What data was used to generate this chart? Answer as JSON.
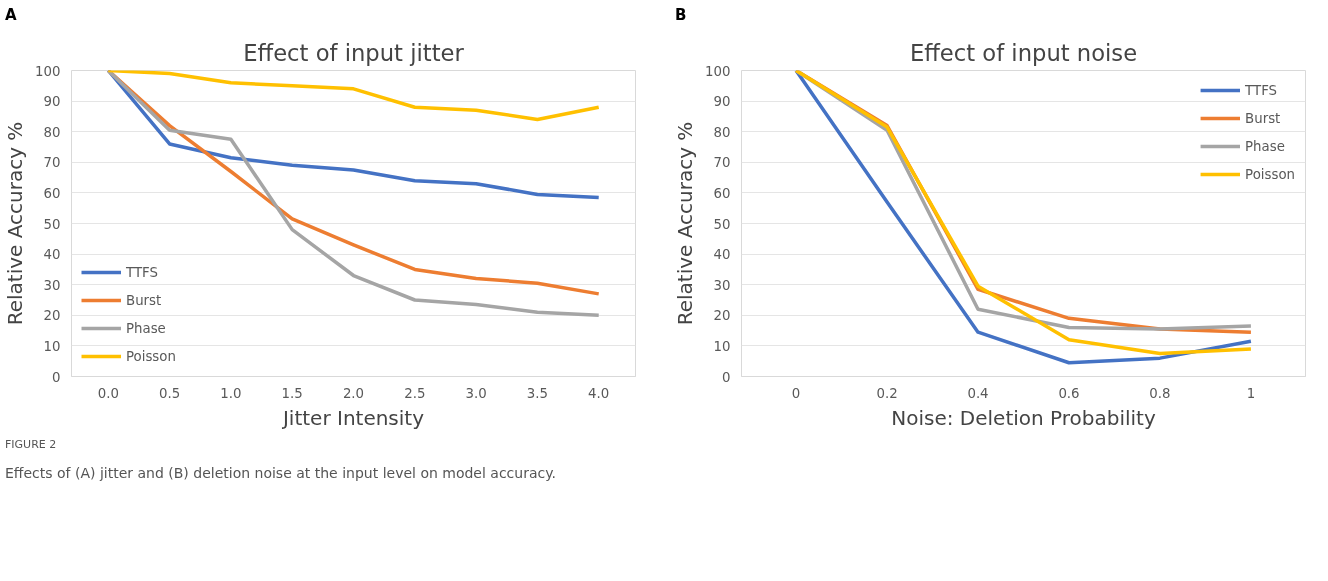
{
  "chart_data": [
    {
      "type": "line",
      "title": "Effect of input jitter",
      "xlabel": "Jitter Intensity",
      "ylabel": "Relative Accuracy %",
      "annotations": [
        "A",
        "FIGURE 2",
        "Effects of (A) jitter and (B) deletion noise at the input level on model accuracy."
      ],
      "categories": [
        "0.0",
        "0.5",
        "1.0",
        "1.5",
        "2.0",
        "2.5",
        "3.0",
        "3.5",
        "4.0"
      ],
      "series": [
        {
          "name": "TTFS",
          "color": "#4472c4",
          "values": [
            100,
            76,
            71.5,
            69,
            67.5,
            64,
            63,
            59.5,
            58.5
          ]
        },
        {
          "name": "Burst",
          "color": "#ed7d31",
          "values": [
            100,
            82,
            67,
            51.5,
            43,
            35,
            32,
            30.5,
            27
          ]
        },
        {
          "name": "Phase",
          "color": "#a5a5a5",
          "values": [
            100,
            80.5,
            77.5,
            48,
            33,
            25,
            23.5,
            21,
            20
          ]
        },
        {
          "name": "Poisson",
          "color": "#ffc000",
          "values": [
            100,
            99,
            96,
            95,
            94,
            88,
            87,
            84,
            88
          ]
        }
      ],
      "ylim": [
        0,
        100
      ],
      "yticks": [
        0,
        10,
        20,
        30,
        40,
        50,
        60,
        70,
        80,
        90,
        100
      ],
      "grid": "y",
      "legend": "bottom left",
      "marker": "none",
      "line_style": "solid"
    },
    {
      "type": "line",
      "title": "Effect of input noise",
      "xlabel": "Noise: Deletion Probability",
      "ylabel": "Relative Accuracy %",
      "annotations": [
        "B"
      ],
      "categories": [
        "0",
        "0.2",
        "0.4",
        "0.6",
        "0.8",
        "1"
      ],
      "series": [
        {
          "name": "TTFS",
          "color": "#4472c4",
          "values": [
            100,
            57,
            14.5,
            4.5,
            6,
            11.5
          ]
        },
        {
          "name": "Burst",
          "color": "#ed7d31",
          "values": [
            100,
            82,
            28.5,
            19,
            15.5,
            14.5
          ]
        },
        {
          "name": "Phase",
          "color": "#a5a5a5",
          "values": [
            100,
            80.5,
            22,
            16,
            15.5,
            16.5
          ]
        },
        {
          "name": "Poisson",
          "color": "#ffc000",
          "values": [
            100,
            81.5,
            29.5,
            12,
            7.5,
            9
          ]
        }
      ],
      "ylim": [
        0,
        100
      ],
      "yticks": [
        0,
        10,
        20,
        30,
        40,
        50,
        60,
        70,
        80,
        90,
        100
      ],
      "grid": "y",
      "legend": "top right",
      "marker": "none",
      "line_style": "solid"
    }
  ]
}
